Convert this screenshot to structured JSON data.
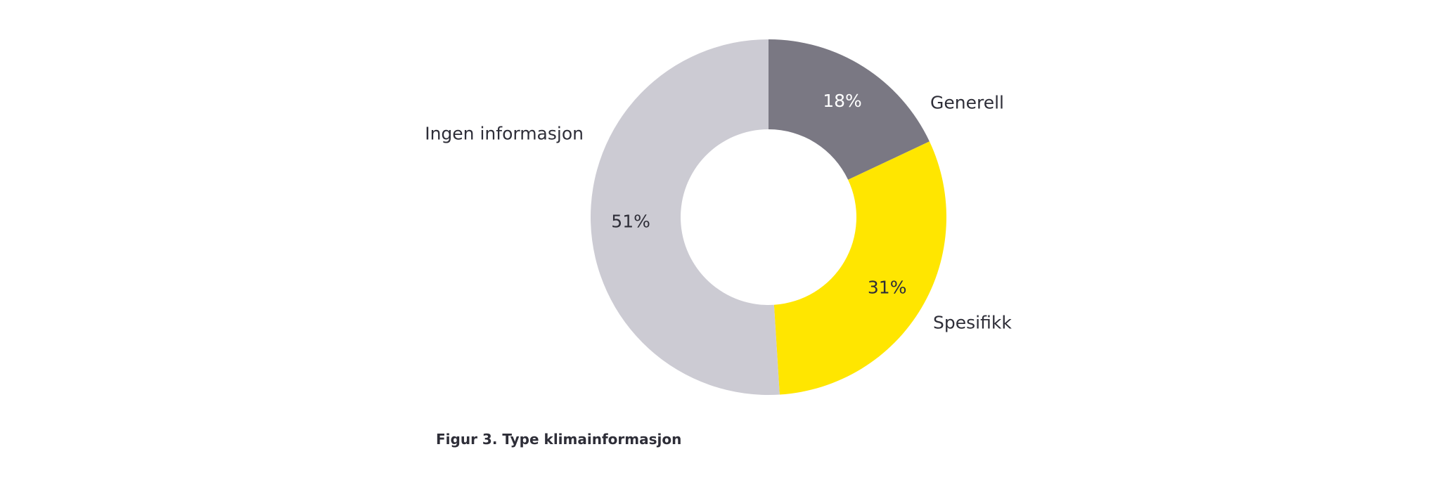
{
  "chart_data": {
    "type": "pie",
    "donut": true,
    "slices": [
      {
        "label": "Generell",
        "value": 18,
        "value_label": "18%",
        "color": "#7a7883",
        "value_label_color": "#ffffff"
      },
      {
        "label": "Spesifikk",
        "value": 31,
        "value_label": "31%",
        "color": "#ffe600",
        "value_label_color": "#2e2e38"
      },
      {
        "label": "Ingen informasjon",
        "value": 51,
        "value_label": "51%",
        "color": "#cccbd3",
        "value_label_color": "#2e2e38"
      }
    ],
    "start": "12 o'clock",
    "direction": "clockwise"
  },
  "caption": "Figur 3. Type klimainformasjon"
}
